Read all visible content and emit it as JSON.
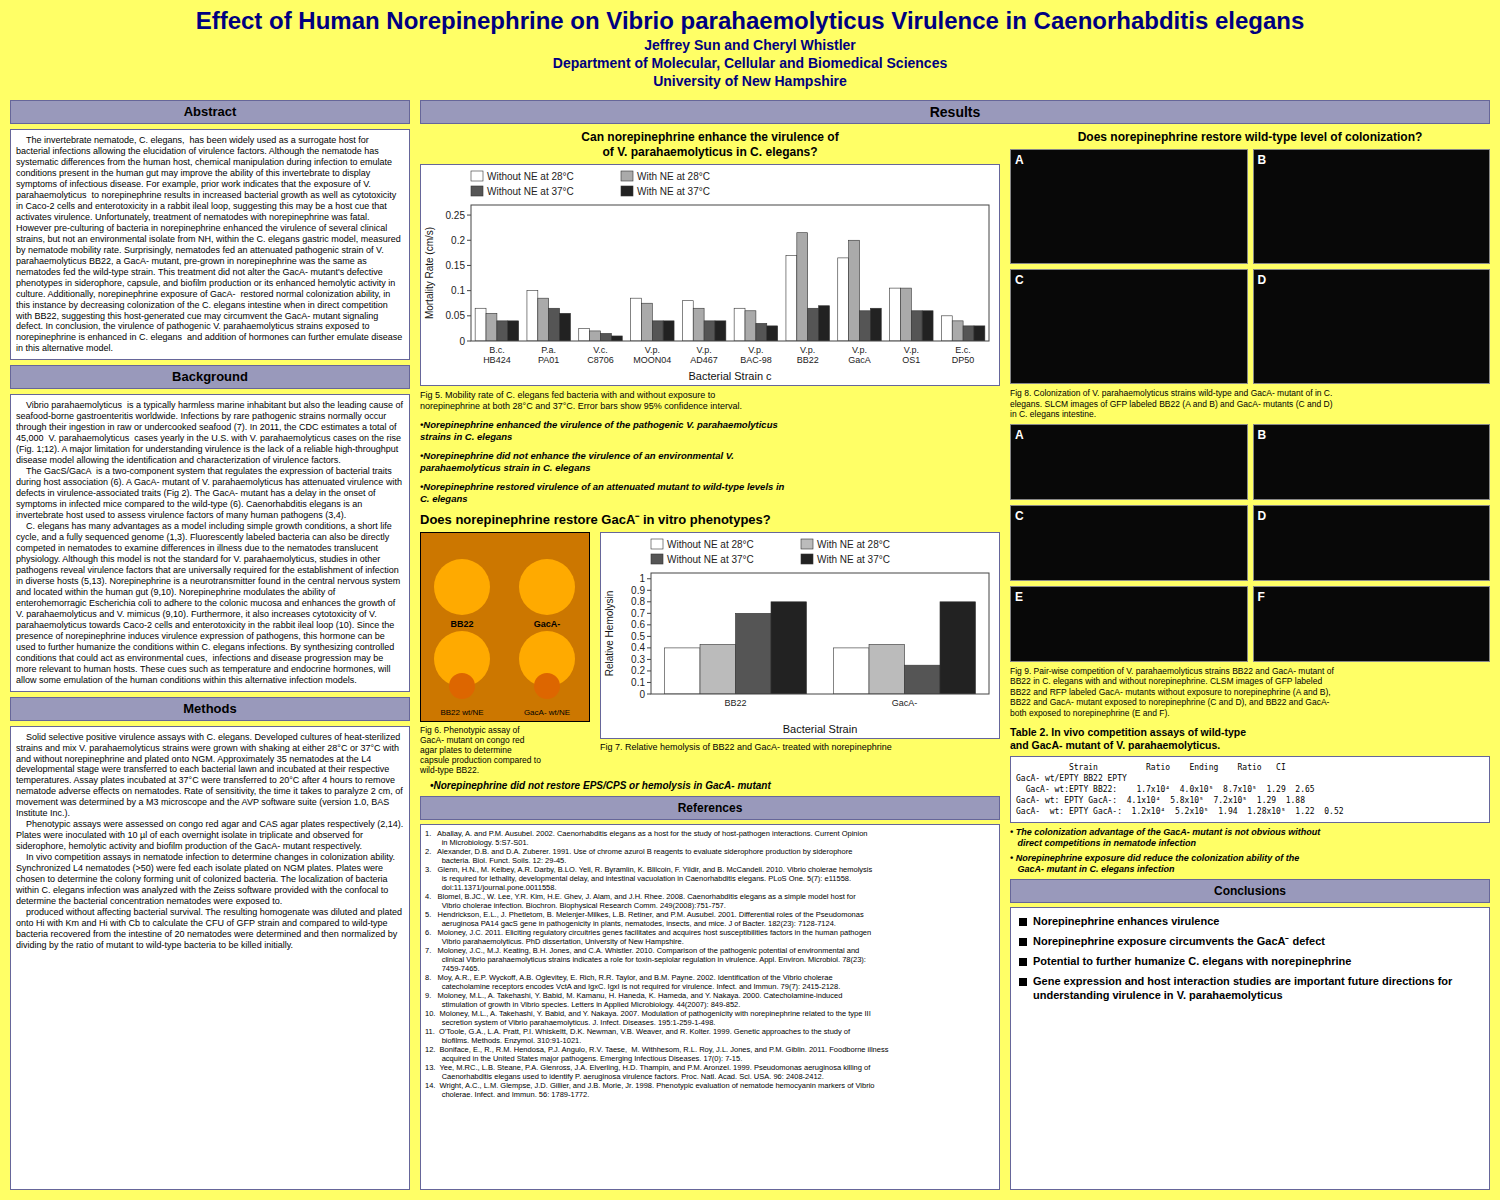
{
  "chart_data": [
    {
      "type": "bar",
      "xlabel": "Bacterial Strain c",
      "ylabel": "Mortality Rate (cm/s)",
      "categories": [
        "B.c.\nHB424",
        "P.a.\nPA01",
        "V.c.\nC8706",
        "V.p.\nMOON04",
        "V.p.\nAD467",
        "V.p.\nBAC-98",
        "V.p.\nBB22",
        "V.p.\nGacA",
        "V.p.\nOS1",
        "E.c.\nDP50"
      ],
      "series": [
        {
          "name": "Without NE at 28°C",
          "color": "#FFFFFF",
          "values": [
            0.065,
            0.1,
            0.025,
            0.085,
            0.08,
            0.065,
            0.17,
            0.165,
            0.105,
            0.05
          ]
        },
        {
          "name": "With NE at 28°C",
          "color": "#AAAAAA",
          "values": [
            0.055,
            0.085,
            0.02,
            0.075,
            0.065,
            0.06,
            0.215,
            0.2,
            0.105,
            0.04
          ]
        },
        {
          "name": "Without NE at 37°C",
          "color": "#555555",
          "values": [
            0.04,
            0.065,
            0.015,
            0.04,
            0.04,
            0.035,
            0.065,
            0.06,
            0.06,
            0.03
          ]
        },
        {
          "name": "With NE at 37°C",
          "color": "#222222",
          "values": [
            0.04,
            0.055,
            0.01,
            0.04,
            0.04,
            0.03,
            0.07,
            0.065,
            0.06,
            0.03
          ]
        }
      ],
      "ylim": [
        0,
        0.27
      ],
      "yticks": [
        0,
        0.05,
        0.1,
        0.15,
        0.2,
        0.25
      ],
      "legend": "upper left"
    },
    {
      "type": "bar",
      "xlabel": "Bacterial Strain",
      "ylabel": "Relative Hemolysin",
      "categories": [
        "BB22",
        "GacA-"
      ],
      "series": [
        {
          "name": "Without NE at 28°C",
          "color": "#FFFFFF",
          "values": [
            0.4,
            0.4
          ]
        },
        {
          "name": "With NE at 28°C",
          "color": "#BBBBBB",
          "values": [
            0.43,
            0.43
          ]
        },
        {
          "name": "Without NE at 37°C",
          "color": "#555555",
          "values": [
            0.7,
            0.25
          ]
        },
        {
          "name": "With NE at 37°C",
          "color": "#222222",
          "values": [
            0.8,
            0.8
          ]
        }
      ],
      "ylim": [
        0,
        1.05
      ],
      "yticks": [
        0,
        0.1,
        0.2,
        0.3,
        0.4,
        0.5,
        0.6,
        0.7,
        0.8,
        0.9,
        1
      ],
      "legend": "upper left"
    }
  ],
  "annotations": {
    "bg_color": "#FFFF66",
    "title_color": "#000080",
    "title": "Effect of Human Norepinephrine on Vibrio parahaemolyticus Virulence in Caenorhabditis elegans",
    "author": "Jeffrey Sun and Cheryl Whistler",
    "department": "Department of Molecular, Cellular and Biomedical Sciences",
    "university": "University of New Hampshire",
    "section_headers": {
      "results": "Results",
      "abstract": "Abstract",
      "background": "Background",
      "methods": "Methods",
      "references": "References",
      "conclusions": "Conclusions"
    },
    "abstract_text": "    The invertebrate nematode, C. elegans,  has been widely used as a surrogate host for bacterial infections allowing the elucidation of virulence factors. Although the nematode has systematic differences from the human host, chemical manipulation during infection to emulate conditions present in the human gut may improve the ability of this invertebrate to display symptoms of infectious disease. For example, prior work indicates that the exposure of V. parahaemolyticus  to norepinephrine results in increased bacterial growth as well as cytotoxicity in Caco-2 cells and enterotoxicity in a rabbit ileal loop, suggesting this may be a host cue that activates virulence. Unfortunately, treatment of nematodes with norepinephrine was fatal. However pre-culturing of bacteria in norepinephrine enhanced the virulence of several clinical strains, but not an environmental isolate from NH, within the C. elegans gastric model, measured by nematode mobility rate. Surprisingly, nematodes fed an attenuated pathogenic strain of V. parahaemolyticus BB22, a GacA- mutant, pre-grown in norepinephrine was the same as nematodes fed the wild-type strain. This treatment did not alter the GacA- mutant's defective phenotypes in siderophore, capsule, and biofilm production or its enhanced hemolytic activity in culture. Additionally, norepinephrine exposure of GacA-  restored normal colonization ability, in this instance by decreasing colonization of the C. elegans intestine when in direct competition with BB22, suggesting this host-generated cue may circumvent the GacA- mutant signaling defect. In conclusion, the virulence of pathogenic V. parahaemolyticus strains exposed to norepinephrine is enhanced in C. elegans  and addition of hormones can further emulate disease in this alternative model.",
    "background_text": "    Vibrio parahaemolyticus  is a typically harmless marine inhabitant but also the leading cause of seafood-borne gastroenteritis worldwide. Infections by rare pathogenic strains normally occur through their ingestion in raw or undercooked seafood (7). In 2011, the CDC estimates a total of 45,000  V. parahaemolyticus  cases yearly in the U.S. with V. parahaemolyticus cases on the rise (Fig. 1;12). A major limitation for understanding virulence is the lack of a reliable high-throughput disease model allowing the identification and characterization of virulence factors.\n    The GacS/GacA  is a two-component system that regulates the expression of bacterial traits during host association (6). A GacA- mutant of V. parahaemolyticus has attenuated virulence with defects in virulence-associated traits (Fig 2). The GacA- mutant has a delay in the onset of symptoms in infected mice compared to the wild-type (6). Caenorhabditis elegans is an invertebrate host used to assess virulence factors of many human pathogens (3,4).\n    C. elegans has many advantages as a model including simple growth conditions, a short life cycle, and a fully sequenced genome (1,3). Fluorescently labeled bacteria can also be directly competed in nematodes to examine differences in illness due to the nematodes translucent physiology. Although this model is not the standard for V. parahaemolyticus, studies in other pathogens reveal virulence factors that are universally required for the establishment of infection in diverse hosts (5,13). Norepinephrine is a neurotransmitter found in the central nervous system and located within the human gut (9,10). Norepinephrine modulates the ability of enterohemorragic Escherichia coli to adhere to the colonic mucosa and enhances the growth of V. parahaemolyticus and V. mimicus (9,10). Furthermore, it also increases cytotoxicity of V. parahaemolyticus towards Caco-2 cells and enterotoxicity in the rabbit ileal loop (10). Since the presence of norepinephrine induces virulence expression of pathogens, this hormone can be used to further humanize the conditions within C. elegans infections. By synthesizing controlled conditions that could act as environmental cues,  infections and disease progression may be more relevant to human hosts. These cues such as temperature and endocrine hormones, will allow some emulation of the human conditions within this alternative infection models.",
    "methods_text": "    Solid selective positive virulence assays with C. elegans. Developed cultures of heat-sterilized strains and mix V. parahaemolyticus strains were grown with shaking at either 28°C or 37°C with and without norepinephrine and plated onto NGM. Approximately 35 nematodes at the L4 developmental stage were transferred to each bacterial lawn and incubated at their respective temperatures. Assay plates incubated at 37°C were transferred to 20°C after 4 hours to remove nematode adverse effects on nematodes. Rate of sensitivity, the time it takes to paralyze 2 cm, of movement was determined by a M3 microscope and the AVP software suite (version 1.0, BAS Institute Inc.).\n    Phenotypic assays were assessed on congo red agar and CAS agar plates respectively (2,14). Plates were inoculated with 10 µl of each overnight isolate in triplicate and observed for siderophore, hemolytic activity and biofilm production of the GacA- mutant respectively.\n    In vivo competition assays in nematode infection to determine changes in colonization ability. Synchronized L4 nematodes (>50) were fed each isolate plated on NGM plates. Plates were chosen to determine the colony forming unit of colonized bacteria. The localization of bacteria within C. elegans infection was analyzed with the Zeiss software provided with the confocal to determine the bacterial concentration nematodes were exposed to.\n    produced without affecting bacterial survival. The resulting homogenate was diluted and plated onto Hi with Km and Hi with Cb to calculate the CFU of GFP strain and compared to wild-type bacteria recovered from the intestine of 20 nematodes were determined and then normalized by dividing by the ratio of mutant to wild-type bacteria to be killed initially.",
    "references_text": "1.   Aballay, A. and P.M. Ausubel. 2002. Caenorhabditis elegans as a host for the study of host-pathogen interactions. Current Opinion\n        in Microbiology. 5:S7-S01.\n2.   Alexander, D.B. and D.A. Zuberer. 1991. Use of chrome azurol B reagents to evaluate siderophore production by siderophore\n        bacteria. Biol. Funct. Soils. 12: 29-45.\n3.   Glenn, H.N., M. Kelbey, A.R. Darby, B.LO. Yell, R. Byramlin, K. Blilcoin, F. Yildir, and B. McCandell. 2010. Vibrio cholerae hemolysis\n        is required for lethality, developmental delay, and intestinal vacuolation in Caenorhabditis elegans. PLoS One. 5(7): e11558.\n        doi:11.1371/journal.pone.0011558.\n4.   Blomel, B.JC., W. Lee, Y.R. Kim, H.E. Ghev, J. Alam, and J.H. Rhee. 2008. Caenorhabditis elegans as a simple model host for\n        Vibrio cholerae infection. Biochron. Biophysical Research Comm. 249(2008):751-757.\n5.   Hendrickson, E.L., J. Phetletom, B. Melenjer-Milkes, L.B. Retiner, and P.M. Ausubel. 2001. Differential roles of the Pseudomonas\n        aeruginosa PA14 gacS gene in pathogenicity in plants, nematodes, insects, and mice. J of Bacter. 182(23): 7128-7124.\n6.   Moloney, J.C. 2011. Eliciting regulatory circuitries genes facilitates and acquires host susceptibilities factors in the human pathogen\n        Vibrio parahaemolyticus. PhD dissertation, University of New Hampshire.\n7.   Moloney, J.C., M.J. Keating, B.H. Jones, and C.A. Whistler. 2010. Comparison of the pathogenic potential of environmental and\n        clinical Vibrio parahaemolyticus strains indicates a role for toxin-sepiolar regulation in virulence. Appl. Environ. Microbiol. 78(23):\n        7459-7465.\n8.   Moy, A.R., E.P. Wyckoff, A.B. Oglevitey, E. Rich, R.R. Taylor, and B.M. Payne. 2002. Identification of the Vibrio cholerae\n        catecholamine receptors encodes VctA and IgxC. IgxI is not required for virulence. Infect. and Immun. 79(7): 2415-2128.\n9.   Moloney, M.L., A. Takehashi, Y. Babid, M. Kamanu, H. Haneda, K. Hameda, and Y. Nakaya. 2000. Catecholamine-induced\n        stimulation of growth in Vibrio species. Letters in Applied Microbiology. 44(2007): 849-852.\n10.  Moloney, M.L., A. Takehashi, Y. Babid, and Y. Nakaya. 2007. Modulation of pathogenicity with norepinephrine related to the type III\n        secretion system of Vibrio parahaemolyticus. J. Infect. Diseases. 195:1-259-1-498.\n11.  O'Toole, G.A., L.A. Pratt, P.I. Whiskeltt, D.K. Newman, V.B. Weaver, and R. Kolter. 1999. Genetic approaches to the study of\n        biofilms. Methods. Enzymol. 310:91-1021.\n12.  Boniface, E., R., R.M. Hendosa, P.J. Angulo, R.V. Taese,  M. Withhesom, R.L. Roy, J.L. Jones, and P.M. Giblin. 2011. Foodborne illness\n        acquired in the United States major pathogens. Emerging Infectious Diseases. 17(0): 7-15.\n13.  Yee, M.RC., L.B. Steane, P.A. Glenross, J.A. Elverling, H.D. Thampin, and P.M. Aronzel. 1999. Pseudomonas aeruginosa killing of\n        Caenorhabditis elegans used to identify P. aeruginosa virulence factors. Proc. Natl. Acad. Sci. USA. 96: 2408-2412.\n14.  Wright, A.C., L.M. Glempse, J.D. Gillier, and J.B. Morie, Jr. 1998. Phenotypic evaluation of nematode hemocyanin markers of Vibrio\n        cholerae. Infect. and Immun. 56: 1789-1772.",
    "q1": "Can norepinephrine enhance the virulence of\n of V. parahaemolyticus in C. elegans?",
    "q2": "Does norepinephrine restore GacA⁻ in vitro phenotypes?",
    "q3": "Does norepinephrine restore wild-type level of colonization?",
    "fig5_caption": "Fig 5. Mobility rate of C. elegans fed bacteria with and without exposure to\nnorepinephrine at both 28°C and 37°C. Error bars show 95% confidence interval.",
    "fig6_caption": "Fig 6. Phenotypic assay of\nGacA- mutant on congo red\nagar plates to determine\ncapsule production compared to\nwild-type BB22.",
    "fig6_labels": [
      "BB22",
      "GacA-",
      "BB22 wt/NE",
      "GacA- wt/NE"
    ],
    "fig7_caption": "Fig 7. Relative hemolysis of BB22 and GacA- treated with norepinephrine",
    "fig8_caption": "Fig 8. Colonization of V. parahaemolyticus strains wild-type and GacA- mutant of in C.\nelegans. SLCM images of GFP labeled BB22 (A and B) and GacA- mutants (C and D)\nin C. elegans intestine.",
    "fig8_panels": [
      "A",
      "B",
      "C",
      "D"
    ],
    "fig9_caption": "Fig 9. Pair-wise competition of V. parahaemolyticus strains BB22 and GacA- mutant of\nBB22 in C. elegans with and without norepinephrine. CLSM images of GFP labeled\nBB22 and RFP labeled GacA- mutants without exposure to norepinephrine (A and B),\nBB22 and GacA- mutant exposed to norepinephrine (C and D), and BB22 and GacA-\nboth exposed to norepinephrine (E and F).",
    "fig9_panels": [
      "A",
      "B",
      "C",
      "D",
      "E",
      "F"
    ],
    "bullets": [
      "•Norepinephrine  enhanced the virulence of the pathogenic V. parahaemolyticus\nstrains in C. elegans",
      "•Norepinephrine  did not enhance the virulence of an environmental V.\nparahaemolyticus strain in C. elegans",
      "•Norepinephrine  restored virulence of an attenuated  mutant to wild-type  levels in\nC. elegans",
      "•Norepinephrine  did not restore EPS/CPS or hemolysis in GacA- mutant"
    ],
    "table2_title": "Table 2. In vivo competition assays of wild-type\nand GacA- mutant of V. parahaemolyticus.",
    "table2_rows": [
      "           Strain          Ratio    Ending    Ratio   CI",
      "GacA- wt/EPTY BB22 EPTY",
      "  GacA- wt:EPTY BB22:    1.7x10⁴  4.0x10⁵  8.7x10⁵  1.29  2.65",
      "GacA- wt: EPTY GacA-:  4.1x10⁴  5.8x10⁵  7.2x10⁵  1.29  1.88",
      "GacA-  wt: EPTY GacA-:  1.2x10⁴  5.2x10⁵  1.94  1.28x10⁵  1.22  0.52"
    ],
    "table2_bullets": [
      "• The colonization advantage of the GacA- mutant is not obvious without\n   direct competitions in nematode infection",
      "• Norepinephrine exposure did reduce the colonization ability of the\n   GacA- mutant in C. elegans infection"
    ],
    "conclusions": [
      "Norepinephrine enhances virulence",
      "Norepinephrine exposure circumvents the GacA⁻ defect",
      "Potential to further humanize C. elegans with norepinephrine",
      "Gene expression and host interaction studies are important future directions for understanding virulence in V. parahaemolyticus"
    ]
  }
}
